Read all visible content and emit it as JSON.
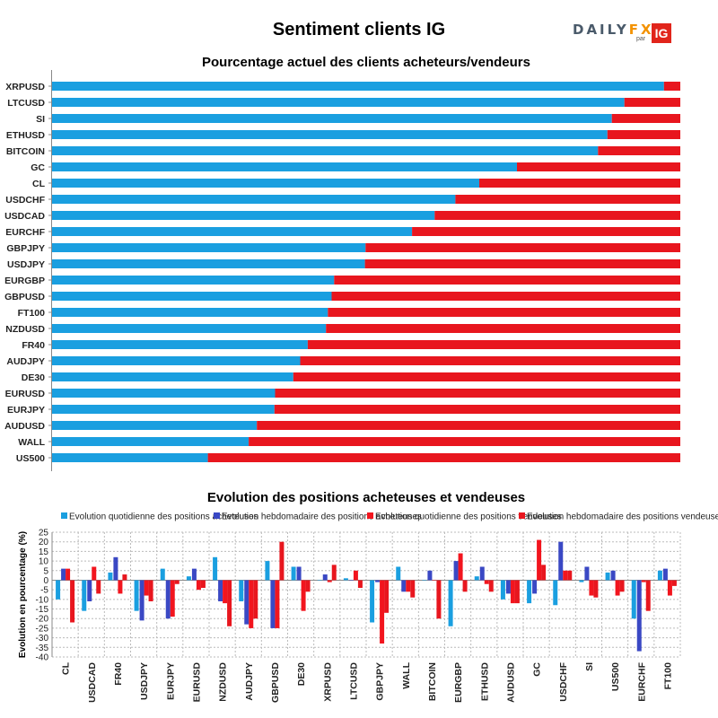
{
  "header": {
    "title": "Sentiment clients IG",
    "logo": {
      "daily": "DAILY",
      "fx": "FX",
      "par": "par",
      "ig": "IG"
    }
  },
  "colors": {
    "blue": "#1a9fe0",
    "red": "#e8161e",
    "darkblue": "#3a48c4",
    "brightred": "#f2151e"
  },
  "chart_data": [
    {
      "type": "bar",
      "orientation": "horizontal",
      "stacked": true,
      "title": "Pourcentage actuel des clients acheteurs/vendeurs",
      "categories": [
        "XRPUSD",
        "LTCUSD",
        "SI",
        "ETHUSD",
        "BITCOIN",
        "GC",
        "CL",
        "USDCHF",
        "USDCAD",
        "EURCHF",
        "GBPJPY",
        "USDJPY",
        "EURGBP",
        "GBPUSD",
        "FT100",
        "NZDUSD",
        "FR40",
        "AUDJPY",
        "DE30",
        "EURUSD",
        "EURJPY",
        "AUDUSD",
        "WALL",
        "US500"
      ],
      "series": [
        {
          "values": [
            97.4,
            91.1,
            89.1,
            88.4,
            86.9,
            74.0,
            68.0,
            64.2,
            60.9,
            57.3,
            49.9,
            49.8,
            44.9,
            44.5,
            43.9,
            43.6,
            40.7,
            39.5,
            38.4,
            35.5,
            35.4,
            32.6,
            31.3,
            24.8
          ]
        },
        {
          "values": [
            2.6,
            8.9,
            10.9,
            11.6,
            13.1,
            26.0,
            32.0,
            35.8,
            39.1,
            42.7,
            50.1,
            50.2,
            55.1,
            55.5,
            56.1,
            56.4,
            59.3,
            60.5,
            61.6,
            64.5,
            64.6,
            67.4,
            68.7,
            75.2
          ]
        }
      ],
      "xlim": [
        0,
        100
      ]
    },
    {
      "type": "bar",
      "title": "Evolution des positions acheteuses et vendeuses",
      "ylabel": "Evolution en pourcentage (%)",
      "ylim": [
        -40,
        25
      ],
      "yticks": [
        -40,
        -35,
        -30,
        -25,
        -20,
        -15,
        -10,
        -5,
        0,
        5,
        10,
        15,
        20,
        25
      ],
      "legend": "top",
      "categories": [
        "CL",
        "USDCAD",
        "FR40",
        "USDJPY",
        "EURJPY",
        "EURUSD",
        "NZDUSD",
        "AUDJPY",
        "GBPUSD",
        "DE30",
        "XRPUSD",
        "LTCUSD",
        "GBPJPY",
        "WALL",
        "BITCOIN",
        "EURGBP",
        "ETHUSD",
        "AUDUSD",
        "GC",
        "USDCHF",
        "SI",
        "US500",
        "EURCHF",
        "FT100"
      ],
      "series": [
        {
          "name": "Evolution quotidienne des positions acheteuses",
          "values": [
            -10,
            -16,
            4,
            -16,
            6,
            2,
            12,
            -11,
            10,
            7,
            0,
            1,
            -22,
            7,
            0,
            -24,
            2,
            -10,
            -12,
            -13,
            -1,
            4,
            -20,
            5
          ]
        },
        {
          "name": "Evolution hebdomadaire des positions acheteuses",
          "values": [
            6,
            -11,
            12,
            -21,
            -20,
            6,
            -11,
            -23,
            -25,
            7,
            3,
            0,
            -1,
            -6,
            5,
            10,
            7,
            -7,
            -7,
            20,
            7,
            5,
            -37,
            6
          ]
        },
        {
          "name": "Evolution quotidienne des positions vendeuses",
          "values": [
            6,
            7,
            -7,
            -8,
            -19,
            -5,
            -12,
            -25,
            -25,
            -16,
            -1,
            5,
            -33,
            -6,
            0,
            14,
            -2,
            -12,
            21,
            5,
            -8,
            -8,
            -1,
            -8
          ]
        },
        {
          "name": "Evolution hebdomadaire des positions vendeuses",
          "values": [
            -22,
            -7,
            3,
            -11,
            -2,
            -4,
            -24,
            -20,
            20,
            -6,
            8,
            -4,
            -17,
            -9,
            -20,
            -6,
            -6,
            -12,
            8,
            5,
            -9,
            -6,
            -16,
            -3
          ]
        }
      ]
    }
  ]
}
